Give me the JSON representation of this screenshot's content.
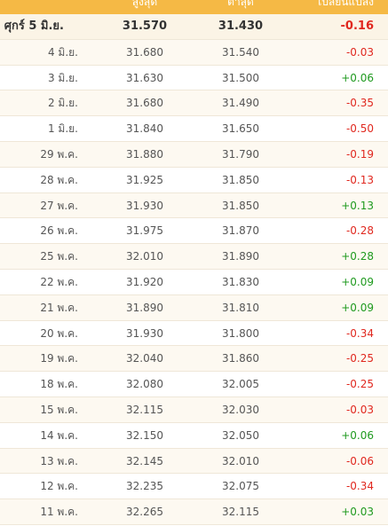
{
  "header": {
    "date": "",
    "high": "สูงสุด",
    "low": "ต่ำสุด",
    "change": "เปลี่ยนแปลง"
  },
  "rows": [
    {
      "date": "ศุกร์ 5 มิ.ย.",
      "high": "31.570",
      "low": "31.430",
      "change": "-0.16"
    },
    {
      "date": "4 มิ.ย.",
      "high": "31.680",
      "low": "31.540",
      "change": "-0.03"
    },
    {
      "date": "3 มิ.ย.",
      "high": "31.630",
      "low": "31.500",
      "change": "+0.06"
    },
    {
      "date": "2 มิ.ย.",
      "high": "31.680",
      "low": "31.490",
      "change": "-0.35"
    },
    {
      "date": "1 มิ.ย.",
      "high": "31.840",
      "low": "31.650",
      "change": "-0.50"
    },
    {
      "date": "29 พ.ค.",
      "high": "31.880",
      "low": "31.790",
      "change": "-0.19"
    },
    {
      "date": "28 พ.ค.",
      "high": "31.925",
      "low": "31.850",
      "change": "-0.13"
    },
    {
      "date": "27 พ.ค.",
      "high": "31.930",
      "low": "31.850",
      "change": "+0.13"
    },
    {
      "date": "26 พ.ค.",
      "high": "31.975",
      "low": "31.870",
      "change": "-0.28"
    },
    {
      "date": "25 พ.ค.",
      "high": "32.010",
      "low": "31.890",
      "change": "+0.28"
    },
    {
      "date": "22 พ.ค.",
      "high": "31.920",
      "low": "31.830",
      "change": "+0.09"
    },
    {
      "date": "21 พ.ค.",
      "high": "31.890",
      "low": "31.810",
      "change": "+0.09"
    },
    {
      "date": "20 พ.ค.",
      "high": "31.930",
      "low": "31.800",
      "change": "-0.34"
    },
    {
      "date": "19 พ.ค.",
      "high": "32.040",
      "low": "31.860",
      "change": "-0.25"
    },
    {
      "date": "18 พ.ค.",
      "high": "32.080",
      "low": "32.005",
      "change": "-0.25"
    },
    {
      "date": "15 พ.ค.",
      "high": "32.115",
      "low": "32.030",
      "change": "-0.03"
    },
    {
      "date": "14 พ.ค.",
      "high": "32.150",
      "low": "32.050",
      "change": "+0.06"
    },
    {
      "date": "13 พ.ค.",
      "high": "32.145",
      "low": "32.010",
      "change": "-0.06"
    },
    {
      "date": "12 พ.ค.",
      "high": "32.235",
      "low": "32.075",
      "change": "-0.34"
    },
    {
      "date": "11 พ.ค.",
      "high": "32.265",
      "low": "32.115",
      "change": "+0.03"
    }
  ],
  "colors": {
    "header_bg": "#f5b945",
    "negative": "#e0281f",
    "positive": "#1f9a1f"
  }
}
